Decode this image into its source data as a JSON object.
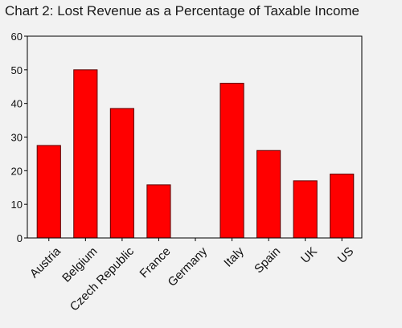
{
  "chart_data": {
    "type": "bar",
    "title": "Chart 2: Lost Revenue as a Percentage of Taxable Income",
    "xlabel": "",
    "ylabel": "",
    "categories": [
      "Austria",
      "Belgium",
      "Czech Republic",
      "France",
      "Germany",
      "Italy",
      "Spain",
      "UK",
      "US"
    ],
    "values": [
      27.5,
      50,
      38.5,
      15.8,
      0,
      46,
      26,
      17,
      19
    ],
    "ylim": [
      0,
      60
    ],
    "yticks": [
      0,
      10,
      20,
      30,
      40,
      50,
      60
    ],
    "grid": false,
    "legend": "none",
    "bar_color": "#ff0000",
    "bar_edge_color": "#5a0000",
    "background_color": "#f2f2f2"
  }
}
